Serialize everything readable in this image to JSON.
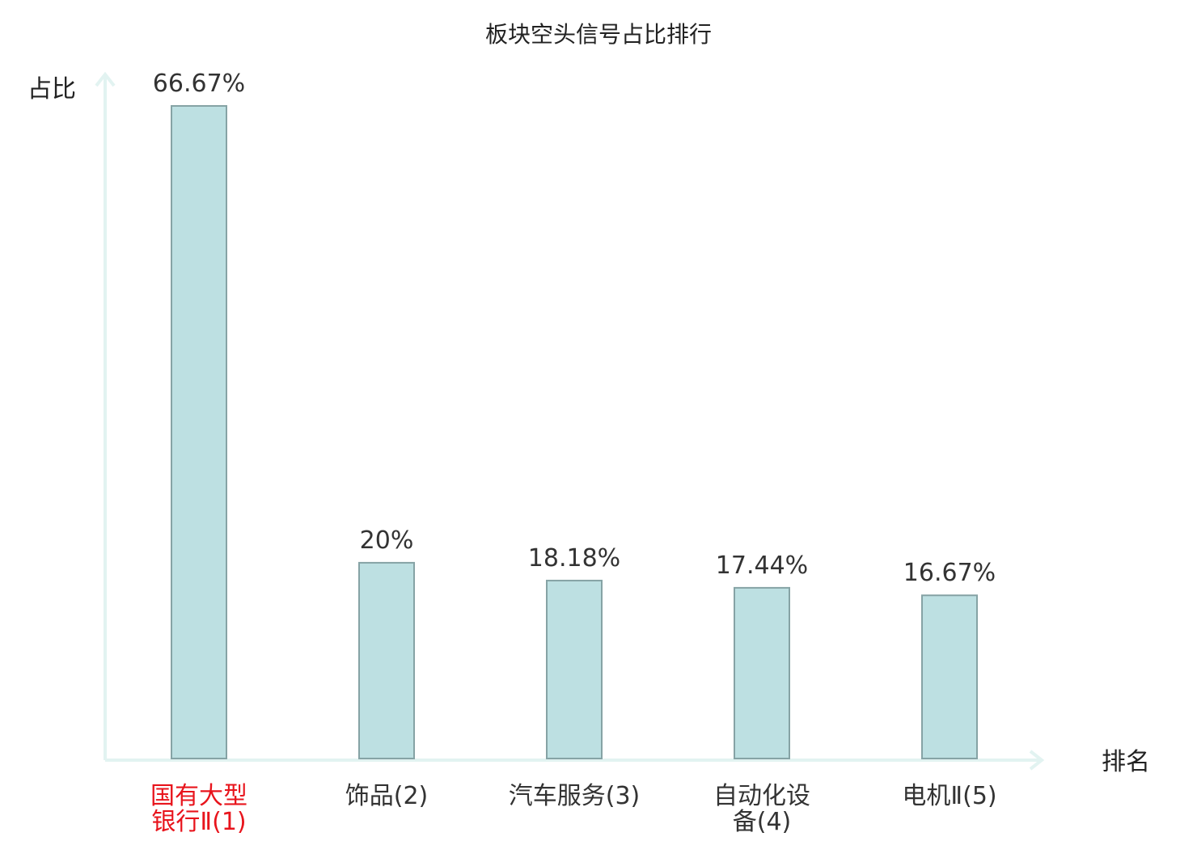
{
  "chart_data": {
    "type": "bar",
    "title": "板块空头信号占比排行",
    "ylabel": "占比",
    "xlabel": "排名",
    "ylim": [
      0,
      70
    ],
    "grid": false,
    "categories": [
      {
        "lines": [
          "国有大型",
          "银行Ⅱ(1)"
        ],
        "highlight": true
      },
      {
        "lines": [
          "饰品(2)"
        ],
        "highlight": false
      },
      {
        "lines": [
          "汽车服务(3)"
        ],
        "highlight": false
      },
      {
        "lines": [
          "自动化设",
          "备(4)"
        ],
        "highlight": false
      },
      {
        "lines": [
          "电机Ⅱ(5)"
        ],
        "highlight": false
      }
    ],
    "values": [
      66.67,
      20,
      18.18,
      17.44,
      16.67
    ],
    "value_labels": [
      "66.67%",
      "20%",
      "18.18%",
      "17.44%",
      "16.67%"
    ]
  },
  "colors": {
    "bar_fill": "#bde0e2",
    "bar_stroke": "#86a3a5",
    "axis": "#e2f3f1",
    "highlight_text": "#e8141c",
    "normal_text": "#333333"
  }
}
